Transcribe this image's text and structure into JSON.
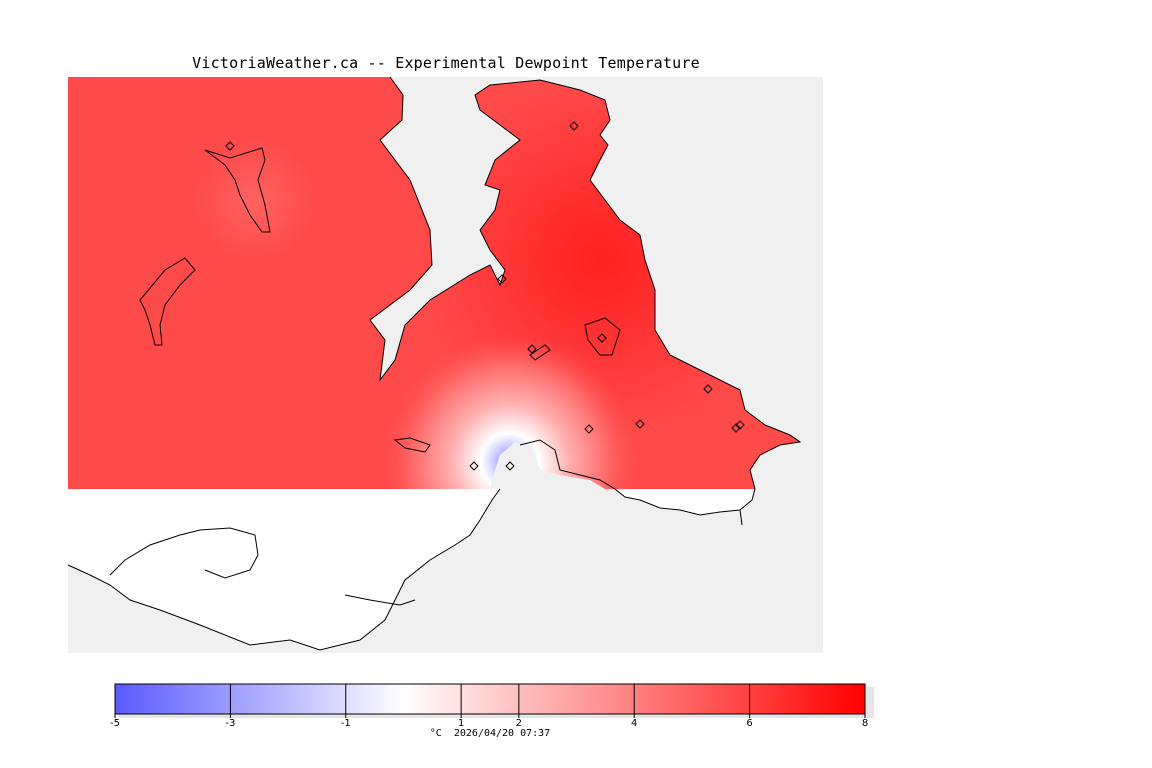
{
  "title": "VictoriaWeather.ca -- Experimental Dewpoint Temperature",
  "legend": {
    "unit": "°C",
    "timestamp": "2026/04/20 07:37",
    "min": -5,
    "max": 8,
    "ticks": [
      -5,
      -3,
      -1,
      1,
      2,
      4,
      6,
      8
    ],
    "tick_labels": [
      "-5",
      "-3",
      "-1",
      "1",
      "2",
      "4",
      "6",
      "8"
    ],
    "low_color": "#5a5aff",
    "mid_color": "#ffffff",
    "high_color": "#ff0000"
  },
  "colors": {
    "water": "#f0f0f0",
    "land_field": "#ff4a4a",
    "no_data_land": "#ffffff",
    "coastline": "#000000"
  },
  "stations": {
    "count": 12
  }
}
